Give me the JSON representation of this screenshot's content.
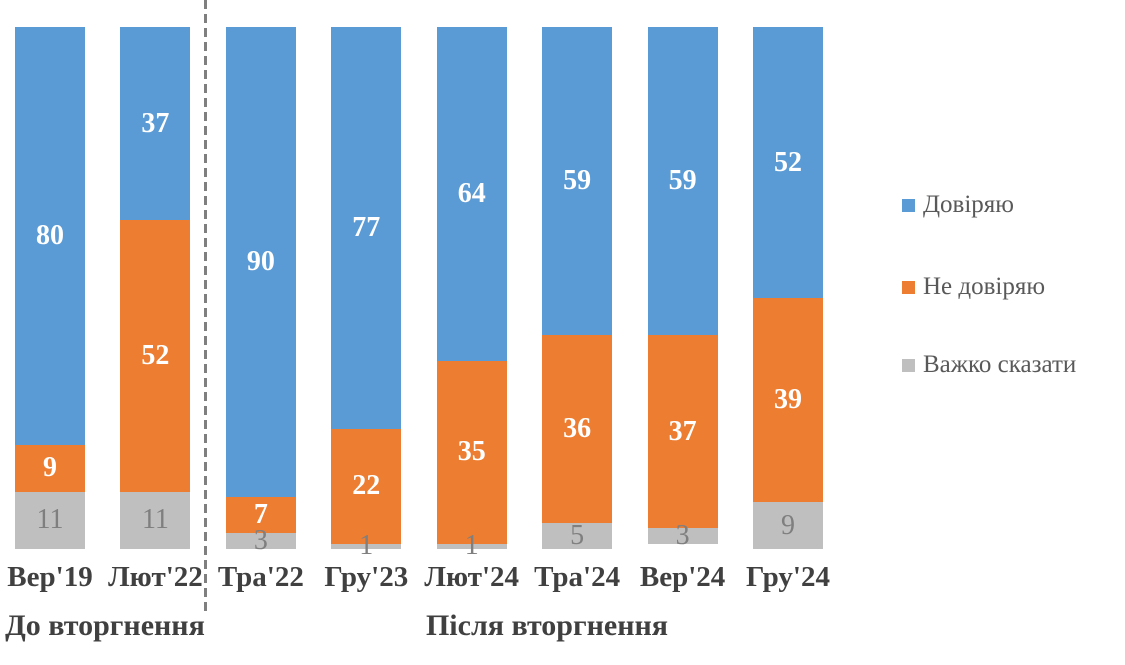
{
  "chart_data": {
    "type": "bar",
    "subtype": "100-percent-stacked-column",
    "title": "",
    "xlabel": "",
    "ylabel": "",
    "ylim": [
      0,
      100
    ],
    "grid": false,
    "legend_position": "right",
    "categories": [
      "Вер'19",
      "Лют'22",
      "Тра'22",
      "Гру'23",
      "Лют'24",
      "Тра'24",
      "Вер'24",
      "Гру'24"
    ],
    "series": [
      {
        "name": "Довіряю",
        "color": "#5B9BD5",
        "label_color": "#FFFFFF",
        "values": [
          80,
          37,
          90,
          77,
          64,
          59,
          59,
          52
        ]
      },
      {
        "name": "Не довіряю",
        "color": "#ED7D31",
        "label_color": "#FFFFFF",
        "values": [
          9,
          52,
          7,
          22,
          35,
          36,
          37,
          39
        ]
      },
      {
        "name": "Важко сказати",
        "color": "#BFBFBF",
        "label_color": "#7F7F7F",
        "values": [
          11,
          11,
          3,
          1,
          1,
          5,
          3,
          9
        ]
      }
    ],
    "group_annotations": [
      {
        "label": "До вторгнення",
        "from": "Вер'19",
        "to": "Лют'22"
      },
      {
        "label": "Після вторгнення",
        "from": "Тра'22",
        "to": "Гру'24"
      }
    ],
    "divider": {
      "style": "dashed",
      "color": "#7F7F7F",
      "between": [
        "Лют'22",
        "Тра'22"
      ]
    }
  }
}
